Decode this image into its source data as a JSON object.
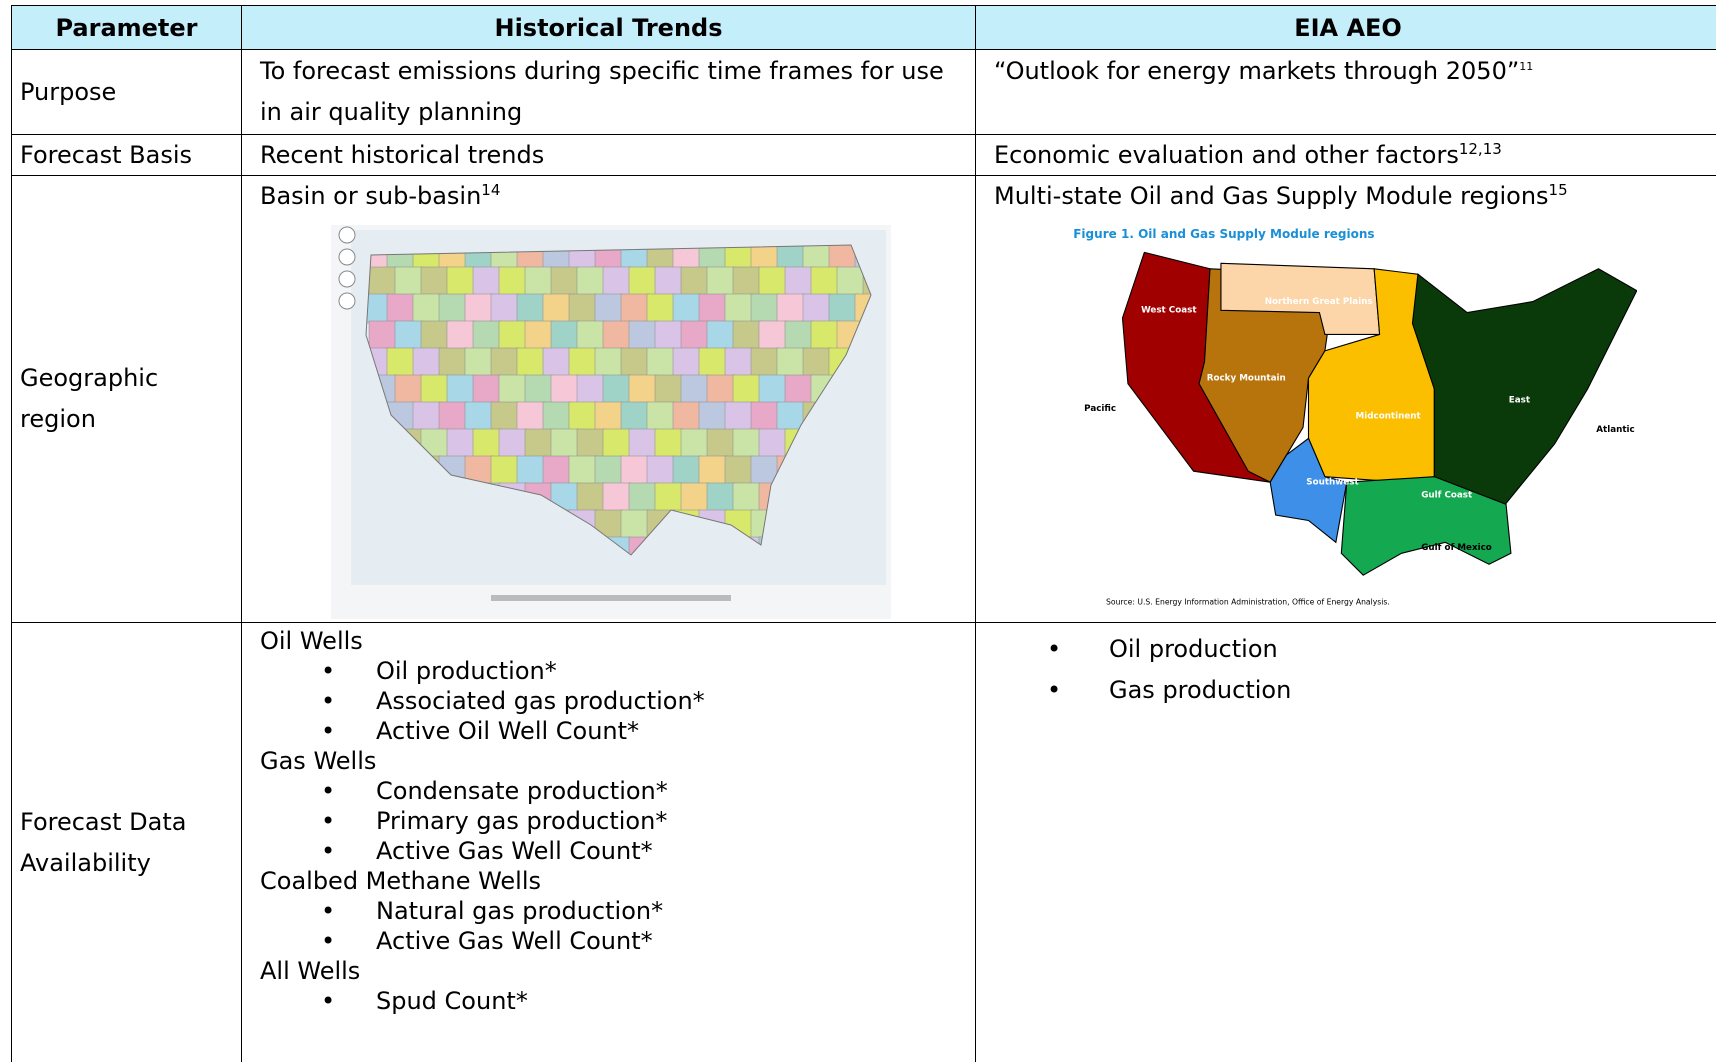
{
  "table": {
    "header": [
      "Parameter",
      "Historical Trends",
      "EIA AEO"
    ],
    "purpose": {
      "label": "Purpose",
      "historical": "To forecast emissions during specific time frames for use in air quality planning",
      "eia": "“Outlook for energy markets through 2050”",
      "eia_note": "11"
    },
    "basis": {
      "label": "Forecast Basis",
      "historical": "Recent historical trends",
      "eia": "Economic evaluation and other factors",
      "eia_note": "12,13"
    },
    "region": {
      "label": "Geographic region",
      "historical": "Basin or sub-basin",
      "historical_note": "14",
      "eia": "Multi-state Oil and Gas Supply Module regions",
      "eia_note": "15",
      "eia_map": {
        "title": "Figure 1. Oil and Gas Supply Module regions",
        "labels": [
          "West Coast",
          "Northern Great Plains",
          "Rocky Mountain",
          "Pacific",
          "Midcontinent",
          "East",
          "Atlantic",
          "Southwest",
          "Gulf Coast",
          "Gulf of Mexico"
        ],
        "source": "Source: U.S. Energy Information Administration, Office of Energy Analysis."
      }
    },
    "availability": {
      "label": "Forecast Data Availability",
      "historical": [
        {
          "group": "Oil Wells",
          "items": [
            "Oil production*",
            "Associated gas production*",
            "Active Oil Well Count*"
          ]
        },
        {
          "group": "Gas Wells",
          "items": [
            "Condensate production*",
            "Primary gas production*",
            "Active Gas Well Count*"
          ]
        },
        {
          "group": "Coalbed Methane Wells",
          "items": [
            "Natural gas production*",
            "Active Gas Well Count*"
          ]
        },
        {
          "group": "All Wells",
          "items": [
            "Spud Count*"
          ]
        }
      ],
      "eia": [
        "Oil production",
        "Gas production"
      ]
    }
  }
}
